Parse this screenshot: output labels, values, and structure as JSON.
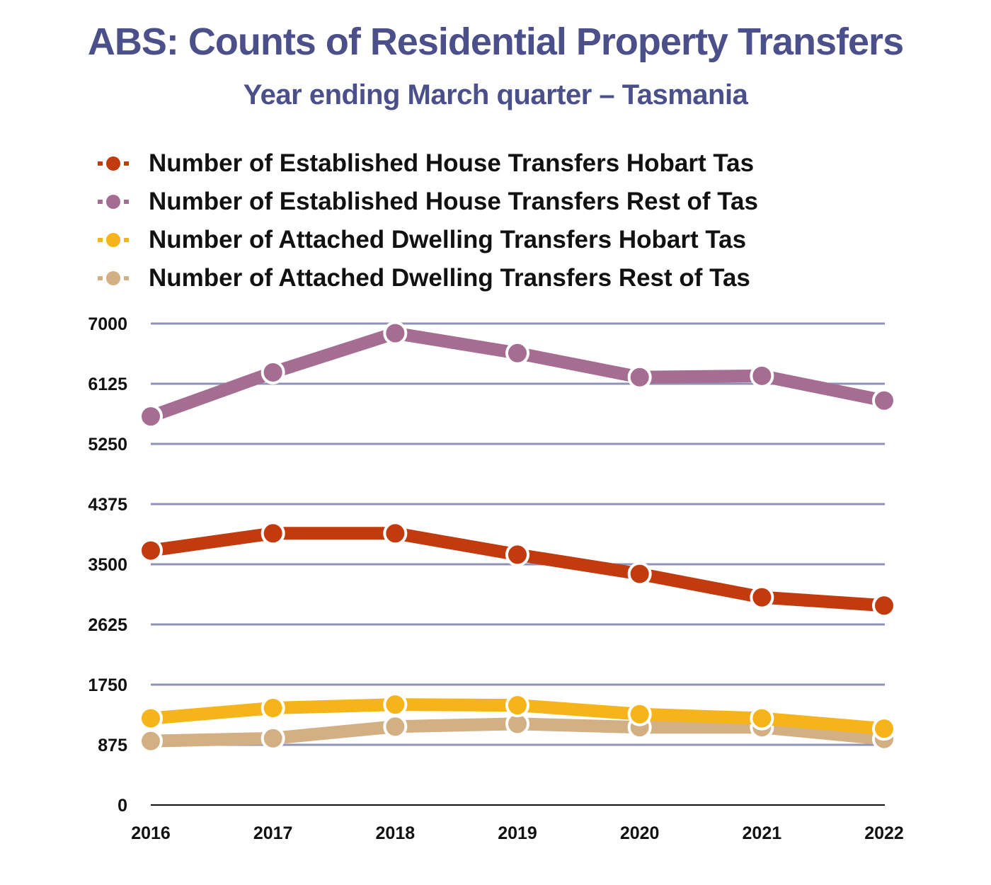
{
  "chart_data": {
    "type": "line",
    "title": "ABS: Counts of Residential Property Transfers",
    "subtitle": "Year ending March quarter – Tasmania",
    "x": [
      "2016",
      "2017",
      "2018",
      "2019",
      "2020",
      "2021",
      "2022"
    ],
    "ylim": [
      0,
      7000
    ],
    "yticks": [
      "0",
      "875",
      "1750",
      "2625",
      "3500",
      "4375",
      "5250",
      "6125",
      "7000"
    ],
    "grid": true,
    "legend_position": "top",
    "series": [
      {
        "name": "Number of Established House Transfers Hobart Tas",
        "color": "#c13b0f",
        "values": [
          3700,
          3950,
          3950,
          3640,
          3360,
          3020,
          2900
        ]
      },
      {
        "name": "Number of Established House Transfers Rest of Tas",
        "color": "#a56d91",
        "values": [
          5650,
          6290,
          6860,
          6570,
          6220,
          6240,
          5880
        ]
      },
      {
        "name": "Number of Attached Dwelling Transfers Hobart Tas",
        "color": "#f5b51a",
        "values": [
          1260,
          1410,
          1460,
          1450,
          1320,
          1260,
          1110
        ]
      },
      {
        "name": "Number of Attached Dwelling Transfers Rest of Tas",
        "color": "#d2b084",
        "values": [
          930,
          970,
          1140,
          1180,
          1130,
          1130,
          960
        ]
      }
    ]
  }
}
